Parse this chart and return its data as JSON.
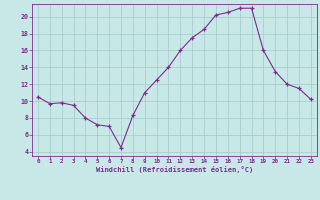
{
  "x": [
    0,
    1,
    2,
    3,
    4,
    5,
    6,
    7,
    8,
    9,
    10,
    11,
    12,
    13,
    14,
    15,
    16,
    17,
    18,
    19,
    20,
    21,
    22,
    23
  ],
  "y": [
    10.5,
    9.7,
    9.8,
    9.5,
    8.0,
    7.2,
    7.0,
    4.5,
    8.3,
    11.0,
    12.5,
    14.0,
    16.0,
    17.5,
    18.5,
    20.2,
    20.5,
    21.0,
    21.0,
    16.0,
    13.5,
    12.0,
    11.5,
    10.2
  ],
  "xlim": [
    -0.5,
    23.5
  ],
  "ylim": [
    3.5,
    21.5
  ],
  "yticks": [
    4,
    6,
    8,
    10,
    12,
    14,
    16,
    18,
    20
  ],
  "xticks": [
    0,
    1,
    2,
    3,
    4,
    5,
    6,
    7,
    8,
    9,
    10,
    11,
    12,
    13,
    14,
    15,
    16,
    17,
    18,
    19,
    20,
    21,
    22,
    23
  ],
  "xlabel": "Windchill (Refroidissement éolien,°C)",
  "line_color": "#7B2D8B",
  "marker": "+",
  "bg_color": "#C8E8E8",
  "grid_color": "#AACECE",
  "tick_color": "#7B2D8B",
  "label_color": "#7B2D8B"
}
